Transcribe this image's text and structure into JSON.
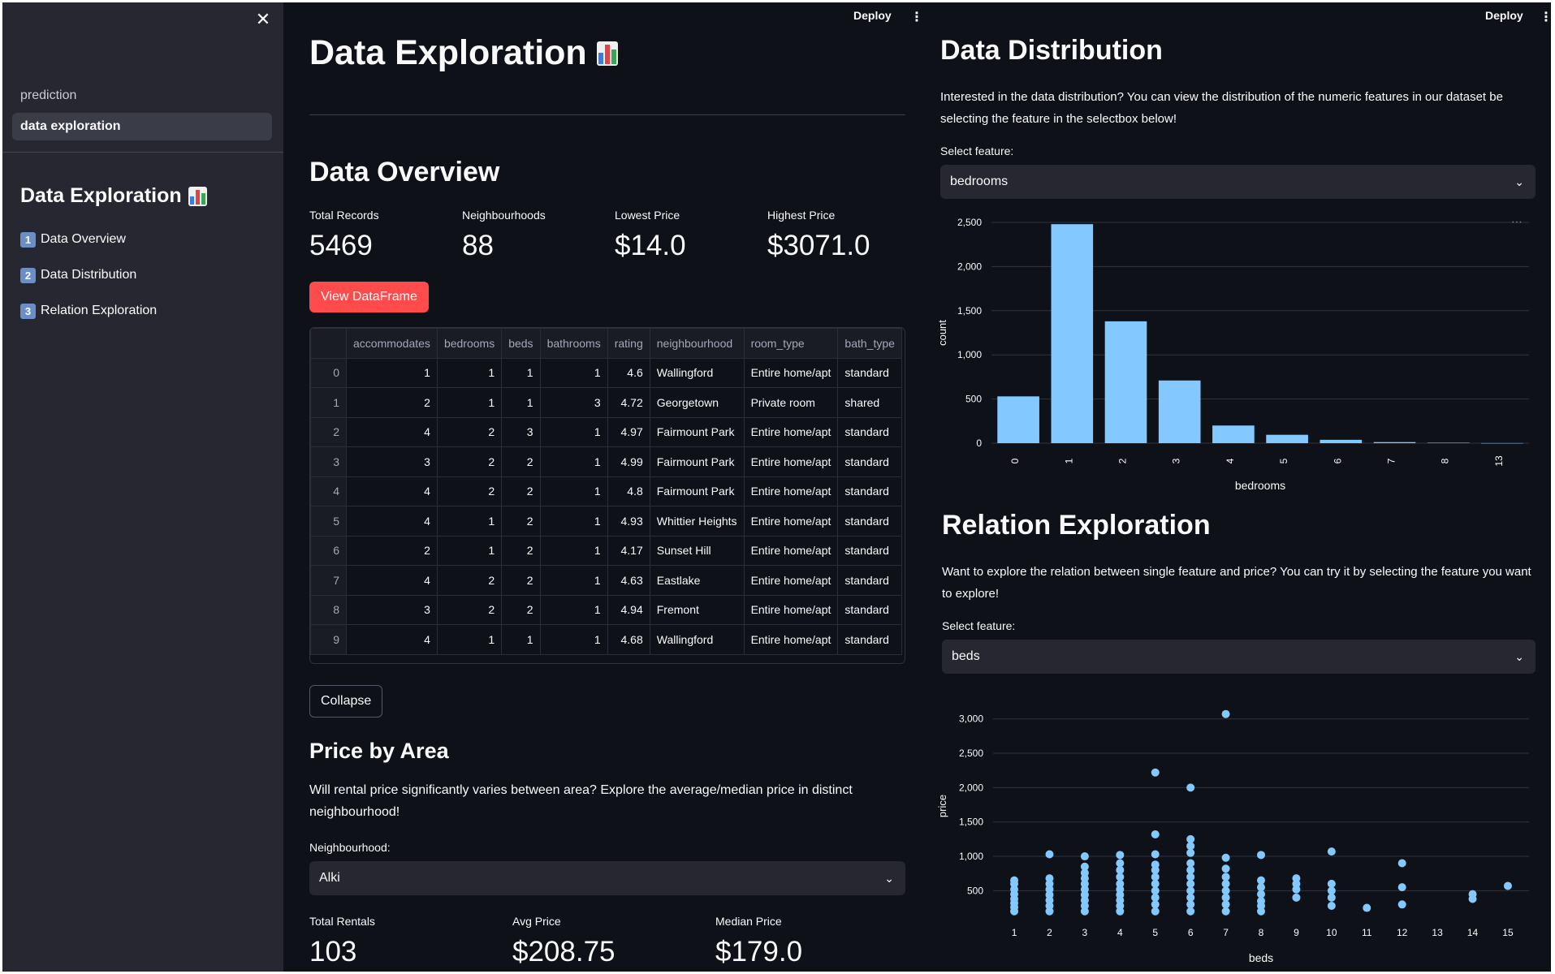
{
  "sidebar": {
    "close_glyph": "✕",
    "nav": [
      {
        "label": "prediction",
        "active": false
      },
      {
        "label": "data exploration",
        "active": true
      }
    ],
    "title": "Data Exploration",
    "toc": [
      {
        "num": "1",
        "label": "Data Overview"
      },
      {
        "num": "2",
        "label": "Data Distribution"
      },
      {
        "num": "3",
        "label": "Relation Exploration"
      }
    ]
  },
  "header": {
    "deploy_label": "Deploy",
    "menu_glyph": "⋮"
  },
  "main": {
    "title": "Data Exploration",
    "overview_heading": "Data Overview",
    "metrics": [
      {
        "label": "Total Records",
        "value": "5469"
      },
      {
        "label": "Neighbourhoods",
        "value": "88"
      },
      {
        "label": "Lowest Price",
        "value": "$14.0"
      },
      {
        "label": "Highest Price",
        "value": "$3071.0"
      }
    ],
    "view_button": "View DataFrame",
    "collapse_button": "Collapse",
    "table": {
      "columns": [
        "",
        "accommodates",
        "bedrooms",
        "beds",
        "bathrooms",
        "rating",
        "neighbourhood",
        "room_type",
        "bath_type"
      ],
      "rows": [
        [
          "0",
          "1",
          "1",
          "1",
          "1",
          "4.6",
          "Wallingford",
          "Entire home/apt",
          "standard"
        ],
        [
          "1",
          "2",
          "1",
          "1",
          "3",
          "4.72",
          "Georgetown",
          "Private room",
          "shared"
        ],
        [
          "2",
          "4",
          "2",
          "3",
          "1",
          "4.97",
          "Fairmount Park",
          "Entire home/apt",
          "standard"
        ],
        [
          "3",
          "3",
          "2",
          "2",
          "1",
          "4.99",
          "Fairmount Park",
          "Entire home/apt",
          "standard"
        ],
        [
          "4",
          "4",
          "2",
          "2",
          "1",
          "4.8",
          "Fairmount Park",
          "Entire home/apt",
          "standard"
        ],
        [
          "5",
          "4",
          "1",
          "2",
          "1",
          "4.93",
          "Whittier Heights",
          "Entire home/apt",
          "standard"
        ],
        [
          "6",
          "2",
          "1",
          "2",
          "1",
          "4.17",
          "Sunset Hill",
          "Entire home/apt",
          "standard"
        ],
        [
          "7",
          "4",
          "2",
          "2",
          "1",
          "4.63",
          "Eastlake",
          "Entire home/apt",
          "standard"
        ],
        [
          "8",
          "3",
          "2",
          "2",
          "1",
          "4.94",
          "Fremont",
          "Entire home/apt",
          "standard"
        ],
        [
          "9",
          "4",
          "1",
          "1",
          "1",
          "4.68",
          "Wallingford",
          "Entire home/apt",
          "standard"
        ]
      ]
    },
    "price_by_area": {
      "heading": "Price by Area",
      "description": "Will rental price significantly varies between area? Explore the average/median price in distinct neighbourhood!",
      "select_label": "Neighbourhood:",
      "selected": "Alki",
      "metrics": [
        {
          "label": "Total Rentals",
          "value": "103"
        },
        {
          "label": "Avg Price",
          "value": "$208.75"
        },
        {
          "label": "Median Price",
          "value": "$179.0"
        }
      ]
    }
  },
  "distribution": {
    "heading": "Data Distribution",
    "description": "Interested in the data distribution? You can view the distribution of the numeric features in our dataset be selecting the feature in the selectbox below!",
    "select_label": "Select feature:",
    "selected": "bedrooms",
    "menu_glyph": "⋯"
  },
  "relation": {
    "heading": "Relation Exploration",
    "description": "Want to explore the relation between single feature and price? You can try it by selecting the feature you want to explore!",
    "select_label": "Select feature:",
    "selected": "beds"
  },
  "colors": {
    "accent": "#ff4b4b",
    "bar": "#83c9ff",
    "point": "#83c9ff",
    "background": "#0e1117",
    "sidebar": "#262730"
  },
  "chart_data": [
    {
      "type": "bar",
      "categories": [
        "0",
        "1",
        "2",
        "3",
        "4",
        "5",
        "6",
        "7",
        "8",
        "13"
      ],
      "values": [
        530,
        2480,
        1380,
        710,
        200,
        95,
        38,
        12,
        5,
        1
      ],
      "xlabel": "bedrooms",
      "ylabel": "count",
      "ylim": [
        0,
        2500
      ],
      "yticks": [
        0,
        500,
        1000,
        1500,
        2000,
        2500
      ],
      "ytick_labels": [
        "0",
        "500",
        "1,000",
        "1,500",
        "2,000",
        "2,500"
      ],
      "grid": true
    },
    {
      "type": "scatter",
      "xlabel": "beds",
      "ylabel": "price",
      "xticks": [
        1,
        2,
        3,
        4,
        5,
        6,
        7,
        8,
        9,
        10,
        11,
        12,
        13,
        14,
        15
      ],
      "yticks": [
        500,
        1000,
        1500,
        2000,
        2500,
        3000
      ],
      "ytick_labels": [
        "500",
        "1,000",
        "1,500",
        "2,000",
        "2,500",
        "3,000"
      ],
      "xlim": [
        0.4,
        15.6
      ],
      "ylim": [
        150,
        3150
      ],
      "grid": true,
      "points": [
        [
          1,
          200
        ],
        [
          1,
          260
        ],
        [
          1,
          320
        ],
        [
          1,
          380
        ],
        [
          1,
          450
        ],
        [
          1,
          520
        ],
        [
          1,
          600
        ],
        [
          1,
          650
        ],
        [
          2,
          200
        ],
        [
          2,
          280
        ],
        [
          2,
          360
        ],
        [
          2,
          440
        ],
        [
          2,
          520
        ],
        [
          2,
          600
        ],
        [
          2,
          680
        ],
        [
          2,
          1030
        ],
        [
          3,
          200
        ],
        [
          3,
          280
        ],
        [
          3,
          360
        ],
        [
          3,
          440
        ],
        [
          3,
          520
        ],
        [
          3,
          600
        ],
        [
          3,
          680
        ],
        [
          3,
          760
        ],
        [
          3,
          850
        ],
        [
          3,
          1000
        ],
        [
          4,
          200
        ],
        [
          4,
          280
        ],
        [
          4,
          360
        ],
        [
          4,
          440
        ],
        [
          4,
          520
        ],
        [
          4,
          600
        ],
        [
          4,
          700
        ],
        [
          4,
          800
        ],
        [
          4,
          900
        ],
        [
          4,
          1020
        ],
        [
          5,
          200
        ],
        [
          5,
          300
        ],
        [
          5,
          400
        ],
        [
          5,
          500
        ],
        [
          5,
          600
        ],
        [
          5,
          700
        ],
        [
          5,
          800
        ],
        [
          5,
          880
        ],
        [
          5,
          1030
        ],
        [
          5,
          1320
        ],
        [
          5,
          2220
        ],
        [
          6,
          200
        ],
        [
          6,
          300
        ],
        [
          6,
          400
        ],
        [
          6,
          500
        ],
        [
          6,
          600
        ],
        [
          6,
          700
        ],
        [
          6,
          800
        ],
        [
          6,
          900
        ],
        [
          6,
          1050
        ],
        [
          6,
          1150
        ],
        [
          6,
          1250
        ],
        [
          6,
          2000
        ],
        [
          7,
          200
        ],
        [
          7,
          300
        ],
        [
          7,
          400
        ],
        [
          7,
          500
        ],
        [
          7,
          600
        ],
        [
          7,
          700
        ],
        [
          7,
          820
        ],
        [
          7,
          980
        ],
        [
          7,
          3071
        ],
        [
          8,
          200
        ],
        [
          8,
          280
        ],
        [
          8,
          350
        ],
        [
          8,
          450
        ],
        [
          8,
          550
        ],
        [
          8,
          650
        ],
        [
          8,
          1020
        ],
        [
          9,
          400
        ],
        [
          9,
          520
        ],
        [
          9,
          600
        ],
        [
          9,
          680
        ],
        [
          10,
          280
        ],
        [
          10,
          400
        ],
        [
          10,
          500
        ],
        [
          10,
          600
        ],
        [
          10,
          1070
        ],
        [
          11,
          250
        ],
        [
          12,
          300
        ],
        [
          12,
          550
        ],
        [
          12,
          900
        ],
        [
          14,
          380
        ],
        [
          14,
          450
        ],
        [
          15,
          570
        ]
      ]
    }
  ]
}
